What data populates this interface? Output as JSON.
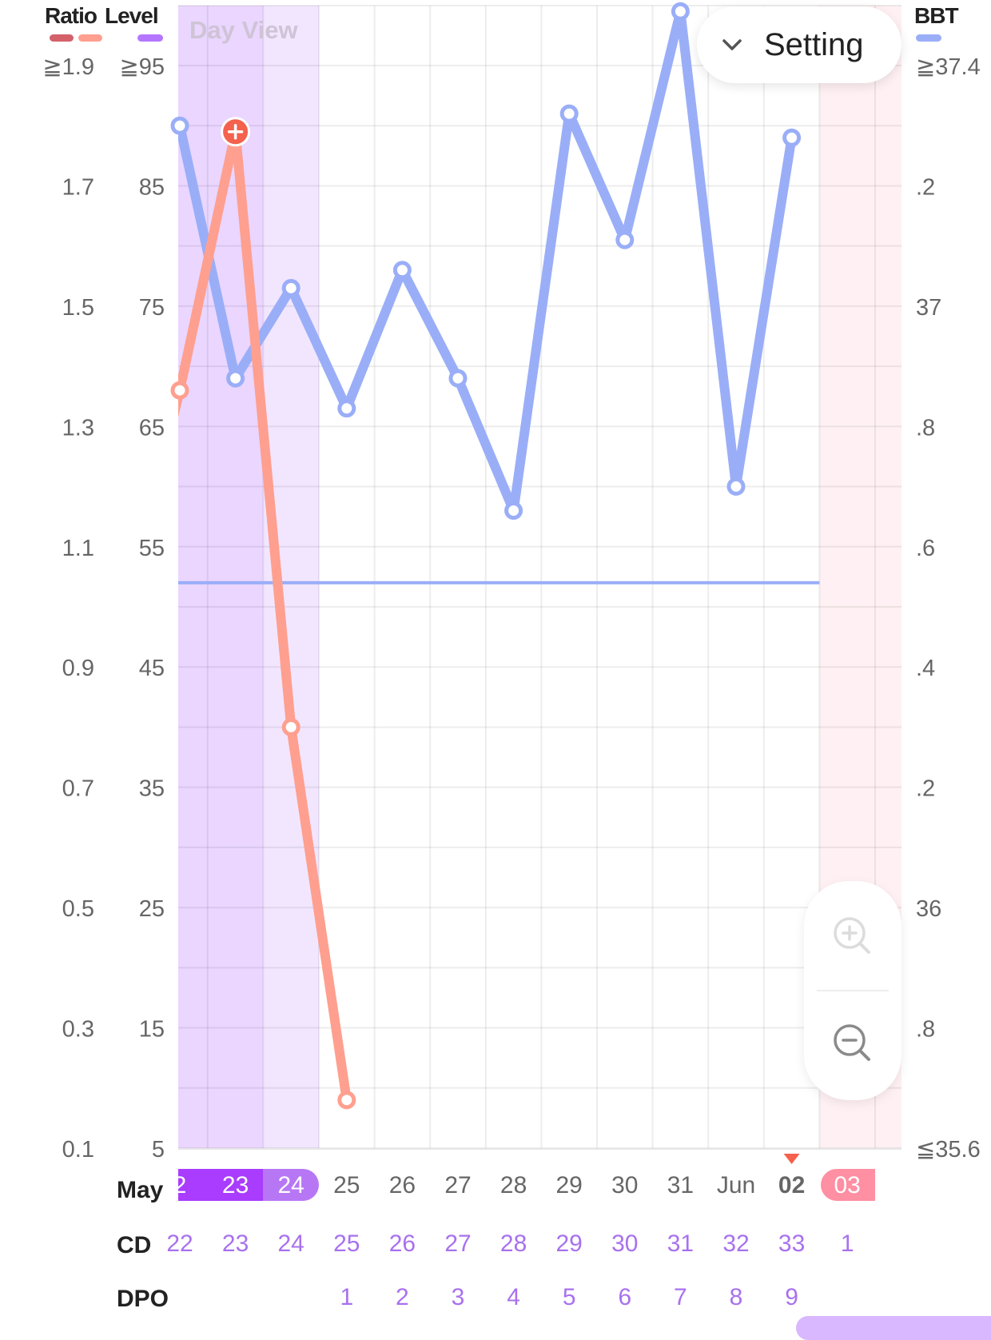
{
  "legend": {
    "ratio_label": "Ratio",
    "level_label": "Level",
    "bbt_label": "BBT",
    "colors": {
      "ratio_dark": "#d4606a",
      "ratio_light": "#ff9f8f",
      "level": "#b476ff",
      "bbt": "#9aaef8"
    }
  },
  "view_label": "Day View",
  "setting": {
    "label": "Setting",
    "icon": "chevron-down-icon"
  },
  "zoom": {
    "zoom_in_icon": "zoom-in-icon",
    "zoom_out_icon": "zoom-out-icon"
  },
  "chart_data": {
    "type": "line",
    "axes": {
      "ratio": {
        "min": 0.1,
        "max": 1.9,
        "tick_labels": [
          "≧1.9",
          "1.7",
          "1.5",
          "1.3",
          "1.1",
          "0.9",
          "0.7",
          "0.5",
          "0.3",
          "0.1"
        ]
      },
      "level": {
        "min": 5,
        "max": 95,
        "tick_labels": [
          "≧95",
          "85",
          "75",
          "65",
          "55",
          "45",
          "35",
          "25",
          "15",
          "5"
        ]
      },
      "bbt": {
        "min": 35.6,
        "max": 37.4,
        "tick_labels": [
          "≧37.4",
          ".2",
          "37",
          ".8",
          ".6",
          ".4",
          ".2",
          "36",
          ".8",
          "≦35.6"
        ]
      }
    },
    "x_labels": [
      "2",
      "23",
      "24",
      "25",
      "26",
      "27",
      "28",
      "29",
      "30",
      "31",
      "Jun",
      "02",
      "03"
    ],
    "month_label": "May",
    "today_index": 11,
    "period_start_index": 12,
    "fertile_indices": [
      0,
      1
    ],
    "fertile_edge_index": 2,
    "cd_label": "CD",
    "cd": [
      "22",
      "23",
      "24",
      "25",
      "26",
      "27",
      "28",
      "29",
      "30",
      "31",
      "32",
      "33",
      "1"
    ],
    "dpo_label": "DPO",
    "dpo": [
      "",
      "",
      "",
      "1",
      "2",
      "3",
      "4",
      "5",
      "6",
      "7",
      "8",
      "9",
      ""
    ],
    "series": [
      {
        "name": "BBT",
        "axis": "bbt",
        "values": [
          37.3,
          36.88,
          37.03,
          36.83,
          37.06,
          36.88,
          36.66,
          37.32,
          37.11,
          37.49,
          36.7,
          37.28
        ]
      },
      {
        "name": "Ratio",
        "axis": "ratio",
        "values": [
          1.36,
          1.79,
          0.8,
          0.18
        ],
        "peak_index": 1
      }
    ],
    "coverline": {
      "axis": "bbt",
      "value": 36.54
    },
    "grid": true
  }
}
